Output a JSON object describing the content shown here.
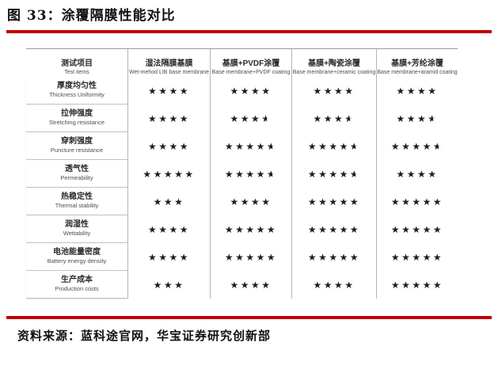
{
  "figure": {
    "title": "图 33：涂覆隔膜性能对比"
  },
  "accent_color": "#c00000",
  "table": {
    "star_glyph": "★",
    "columns": [
      {
        "zh": "测试项目",
        "en": "Test items"
      },
      {
        "zh": "湿法隔膜基膜",
        "en": "Wet-mehod LIB base membrane"
      },
      {
        "zh": "基膜+PVDF涂覆",
        "en": "Base membrane+PVDF coating"
      },
      {
        "zh": "基膜+陶瓷涂覆",
        "en": "Base membrane+ceramic coating"
      },
      {
        "zh": "基膜+芳纶涂覆",
        "en": "Base membrane+aramid coating"
      }
    ],
    "rows": [
      {
        "zh": "厚度均匀性",
        "en": "Thickness Uniformity",
        "ratings": [
          4,
          4,
          4,
          4
        ]
      },
      {
        "zh": "拉伸强度",
        "en": "Stretching resistance",
        "ratings": [
          4,
          3.5,
          3.5,
          3.5
        ]
      },
      {
        "zh": "穿刺强度",
        "en": "Puncture resistance",
        "ratings": [
          4,
          4.5,
          4.5,
          4.5
        ]
      },
      {
        "zh": "透气性",
        "en": "Permeability",
        "ratings": [
          5,
          4.5,
          4.5,
          4
        ]
      },
      {
        "zh": "热稳定性",
        "en": "Thermal stability",
        "ratings": [
          3,
          4,
          5,
          5
        ]
      },
      {
        "zh": "润湿性",
        "en": "Wettability",
        "ratings": [
          4,
          5,
          5,
          5
        ]
      },
      {
        "zh": "电池能量密度",
        "en": "Battery energy density",
        "ratings": [
          4,
          5,
          5,
          5
        ]
      },
      {
        "zh": "生产成本",
        "en": "Production costs",
        "ratings": [
          3,
          4,
          4,
          5
        ]
      }
    ]
  },
  "chart_data": {
    "type": "table",
    "title": "图 33：涂覆隔膜性能对比",
    "categories": [
      "厚度均匀性",
      "拉伸强度",
      "穿刺强度",
      "透气性",
      "热稳定性",
      "润湿性",
      "电池能量密度",
      "生产成本"
    ],
    "series": [
      {
        "name": "湿法隔膜基膜 (Wet-mehod LIB base membrane)",
        "values": [
          4,
          4,
          4,
          5,
          3,
          4,
          4,
          3
        ]
      },
      {
        "name": "基膜+PVDF涂覆 (Base membrane+PVDF coating)",
        "values": [
          4,
          3.5,
          4.5,
          4.5,
          4,
          5,
          5,
          4
        ]
      },
      {
        "name": "基膜+陶瓷涂覆 (Base membrane+ceramic coating)",
        "values": [
          4,
          3.5,
          4.5,
          4.5,
          5,
          5,
          5,
          4
        ]
      },
      {
        "name": "基膜+芳纶涂覆 (Base membrane+aramid coating)",
        "values": [
          4,
          3.5,
          4.5,
          4,
          5,
          5,
          5,
          5
        ]
      }
    ],
    "value_scale": "stars, 0.5–5 in half-star steps"
  },
  "source": {
    "label": "资料来源：",
    "text": "蓝科途官网，华宝证券研究创新部"
  }
}
